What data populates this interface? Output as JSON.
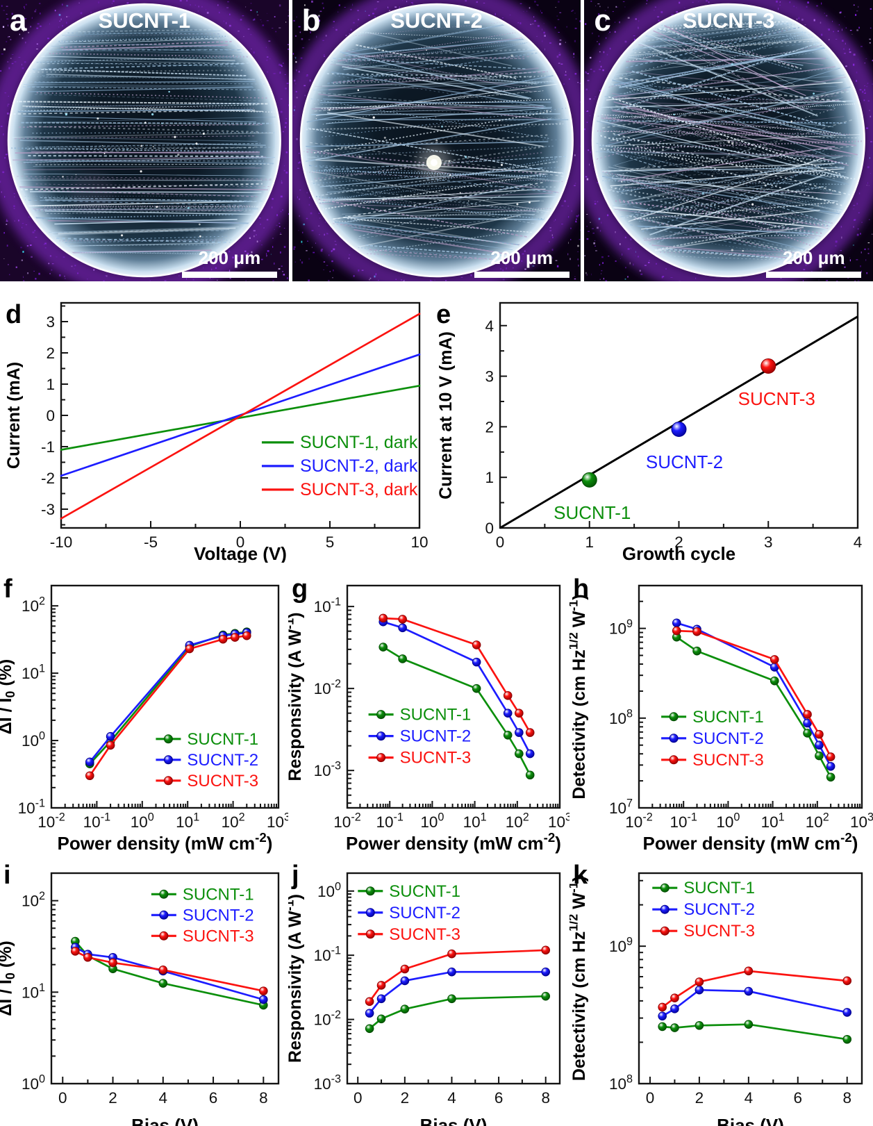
{
  "micrographs": [
    {
      "letter": "a",
      "title": "SUCNT-1",
      "scale_label": "200 μm"
    },
    {
      "letter": "b",
      "title": "SUCNT-2",
      "scale_label": "200 μm"
    },
    {
      "letter": "c",
      "title": "SUCNT-3",
      "scale_label": "200 μm"
    }
  ],
  "colors": {
    "sucnt1": "#0c8f0c",
    "sucnt2": "#1d1dff",
    "sucnt3": "#fb1310",
    "fit_line": "#000000"
  },
  "chart_data": [
    {
      "panel": "d",
      "type": "line",
      "xlabel": "Voltage (V)",
      "ylabel": "Current (mA)",
      "x": {
        "scale": "linear",
        "min": -10,
        "max": 10,
        "ticks": [
          -10,
          -5,
          0,
          5,
          10
        ],
        "minor_step": 2.5
      },
      "y": {
        "scale": "linear",
        "min": -3.6,
        "max": 3.6,
        "ticks": [
          -3,
          -2,
          -1,
          0,
          1,
          2,
          3
        ],
        "minor_step": 0.5
      },
      "series": [
        {
          "name": "SUCNT-1, dark",
          "color": "#0c8f0c",
          "dark": "#024d02",
          "x": [
            -10,
            10
          ],
          "y": [
            -1.1,
            0.95
          ],
          "markers": false
        },
        {
          "name": "SUCNT-2, dark",
          "color": "#1d1dff",
          "dark": "#000090",
          "x": [
            -10,
            10
          ],
          "y": [
            -1.93,
            1.95
          ],
          "markers": false
        },
        {
          "name": "SUCNT-3, dark",
          "color": "#fb1310",
          "dark": "#8e0000",
          "x": [
            -10,
            10
          ],
          "y": [
            -3.3,
            3.25
          ],
          "markers": false
        }
      ],
      "legend": {
        "pos": [
          0.56,
          0.62
        ],
        "dy": 34,
        "sample": 46,
        "fs": 25
      }
    },
    {
      "panel": "e",
      "type": "scatter",
      "xlabel": "Growth cycle",
      "ylabel": "Current at 10 V (mA)",
      "x": {
        "scale": "linear",
        "min": 0,
        "max": 4,
        "ticks": [
          0,
          1,
          2,
          3,
          4
        ],
        "minor_step": 0.5
      },
      "y": {
        "scale": "linear",
        "min": 0,
        "max": 4.45,
        "ticks": [
          0,
          1,
          2,
          3,
          4
        ],
        "minor_step": 0.5
      },
      "fit_line": {
        "x": [
          0,
          4
        ],
        "y": [
          0,
          4.18
        ],
        "color": "#000000"
      },
      "series": [
        {
          "name": "SUCNT-1",
          "color": "#0c8f0c",
          "dark": "#024d02",
          "x": [
            1
          ],
          "y": [
            0.95
          ],
          "line": false,
          "markers": true,
          "marker_size": 10.5,
          "point_label": {
            "dx": 4,
            "dy": 56
          }
        },
        {
          "name": "SUCNT-2",
          "color": "#1d1dff",
          "dark": "#000090",
          "x": [
            2
          ],
          "y": [
            1.95
          ],
          "line": false,
          "markers": true,
          "marker_size": 10.5,
          "point_label": {
            "dx": 8,
            "dy": 56
          }
        },
        {
          "name": "SUCNT-3",
          "color": "#fb1310",
          "dark": "#8e0000",
          "x": [
            3
          ],
          "y": [
            3.2
          ],
          "line": false,
          "markers": true,
          "marker_size": 10.5,
          "point_label": {
            "dx": 12,
            "dy": 56
          }
        }
      ]
    },
    {
      "panel": "f",
      "type": "line",
      "xlabel": "Power density (mW cm^{-2})",
      "ylabel": "ΔI / I_{0} (%)",
      "x": {
        "scale": "log",
        "min": 0.01,
        "max": 1000
      },
      "y": {
        "scale": "log",
        "min": 0.1,
        "max": 200
      },
      "series": [
        {
          "name": "SUCNT-1",
          "color": "#0c8f0c",
          "dark": "#024d02",
          "x": [
            0.07,
            0.2,
            11,
            60,
            110,
            200
          ],
          "y": [
            0.45,
            0.97,
            25,
            37,
            39,
            41
          ],
          "markers": true
        },
        {
          "name": "SUCNT-2",
          "color": "#1d1dff",
          "dark": "#000090",
          "x": [
            0.07,
            0.2,
            11,
            60,
            110,
            200
          ],
          "y": [
            0.48,
            1.15,
            26,
            36,
            38,
            40
          ],
          "markers": true
        },
        {
          "name": "SUCNT-3",
          "color": "#fb1310",
          "dark": "#8e0000",
          "x": [
            0.07,
            0.2,
            11,
            60,
            110,
            200
          ],
          "y": [
            0.3,
            0.85,
            23,
            32,
            34,
            36
          ],
          "markers": true
        }
      ],
      "legend": {
        "pos": [
          0.46,
          0.69
        ],
        "dy": 30,
        "sample": 36,
        "fs": 24
      }
    },
    {
      "panel": "g",
      "type": "line",
      "xlabel": "Power density (mW cm^{-2})",
      "ylabel": "Responsivity (A W^{-1})",
      "x": {
        "scale": "log",
        "min": 0.01,
        "max": 1000
      },
      "y": {
        "scale": "log",
        "min": 0.00035,
        "max": 0.18
      },
      "series": [
        {
          "name": "SUCNT-1",
          "color": "#0c8f0c",
          "dark": "#024d02",
          "x": [
            0.07,
            0.2,
            11,
            60,
            110,
            200
          ],
          "y": [
            0.032,
            0.023,
            0.01,
            0.0027,
            0.0016,
            0.00088
          ],
          "markers": true
        },
        {
          "name": "SUCNT-2",
          "color": "#1d1dff",
          "dark": "#000090",
          "x": [
            0.07,
            0.2,
            11,
            60,
            110,
            200
          ],
          "y": [
            0.065,
            0.055,
            0.021,
            0.005,
            0.0029,
            0.0016
          ],
          "markers": true
        },
        {
          "name": "SUCNT-3",
          "color": "#fb1310",
          "dark": "#8e0000",
          "x": [
            0.07,
            0.2,
            11,
            60,
            110,
            200
          ],
          "y": [
            0.072,
            0.07,
            0.034,
            0.0082,
            0.005,
            0.0029
          ],
          "markers": true
        }
      ],
      "legend": {
        "pos": [
          0.1,
          0.58
        ],
        "dy": 31,
        "sample": 36,
        "fs": 24
      }
    },
    {
      "panel": "h",
      "type": "line",
      "xlabel": "Power density (mW cm^{-2})",
      "ylabel": "Detectivity (cm Hz^{1/2} W^{-1})",
      "x": {
        "scale": "log",
        "min": 0.01,
        "max": 1000
      },
      "y": {
        "scale": "log",
        "min": 10000000,
        "max": 3000000000
      },
      "series": [
        {
          "name": "SUCNT-1",
          "color": "#0c8f0c",
          "dark": "#024d02",
          "x": [
            0.07,
            0.2,
            11,
            60,
            110,
            200
          ],
          "y": [
            800000000,
            560000000,
            260000000,
            68000000,
            38000000,
            22000000
          ],
          "markers": true
        },
        {
          "name": "SUCNT-2",
          "color": "#1d1dff",
          "dark": "#000090",
          "x": [
            0.07,
            0.2,
            11,
            60,
            110,
            200
          ],
          "y": [
            1150000000,
            980000000,
            370000000,
            88000000,
            50000000,
            29000000
          ],
          "markers": true
        },
        {
          "name": "SUCNT-3",
          "color": "#fb1310",
          "dark": "#8e0000",
          "x": [
            0.07,
            0.2,
            11,
            60,
            110,
            200
          ],
          "y": [
            940000000,
            920000000,
            450000000,
            110000000,
            66000000,
            37000000
          ],
          "markers": true
        }
      ],
      "legend": {
        "pos": [
          0.1,
          0.59
        ],
        "dy": 31,
        "sample": 36,
        "fs": 24
      }
    },
    {
      "panel": "i",
      "type": "line",
      "xlabel": "Bias (V)",
      "ylabel": "ΔI / I_{0} (%)",
      "x": {
        "scale": "linear",
        "min": -0.45,
        "max": 8.6,
        "ticks": [
          0,
          2,
          4,
          6,
          8
        ],
        "minor_step": 1
      },
      "y": {
        "scale": "log",
        "min": 1,
        "max": 200
      },
      "series": [
        {
          "name": "SUCNT-1",
          "color": "#0c8f0c",
          "dark": "#024d02",
          "x": [
            0.5,
            1,
            2,
            4,
            8
          ],
          "y": [
            36,
            25,
            18,
            12.5,
            7.2
          ],
          "markers": true
        },
        {
          "name": "SUCNT-2",
          "color": "#1d1dff",
          "dark": "#000090",
          "x": [
            0.5,
            1,
            2,
            4,
            8
          ],
          "y": [
            31,
            26,
            24,
            17,
            8.3
          ],
          "markers": true
        },
        {
          "name": "SUCNT-3",
          "color": "#fb1310",
          "dark": "#8e0000",
          "x": [
            0.5,
            1,
            2,
            4,
            8
          ],
          "y": [
            28,
            24,
            21,
            17.5,
            10.3
          ],
          "markers": true
        }
      ],
      "legend": {
        "pos": [
          0.44,
          0.1
        ],
        "dy": 30,
        "sample": 36,
        "fs": 24
      }
    },
    {
      "panel": "j",
      "type": "line",
      "xlabel": "Bias (V)",
      "ylabel": "Responsivity (A W^{-1})",
      "x": {
        "scale": "linear",
        "min": -0.45,
        "max": 8.6,
        "ticks": [
          0,
          2,
          4,
          6,
          8
        ],
        "minor_step": 1
      },
      "y": {
        "scale": "log",
        "min": 0.001,
        "max": 1.9
      },
      "series": [
        {
          "name": "SUCNT-1",
          "color": "#0c8f0c",
          "dark": "#024d02",
          "x": [
            0.5,
            1,
            2,
            4,
            8
          ],
          "y": [
            0.0072,
            0.0102,
            0.0145,
            0.021,
            0.023
          ],
          "markers": true
        },
        {
          "name": "SUCNT-2",
          "color": "#1d1dff",
          "dark": "#000090",
          "x": [
            0.5,
            1,
            2,
            4,
            8
          ],
          "y": [
            0.0125,
            0.021,
            0.04,
            0.055,
            0.055
          ],
          "markers": true
        },
        {
          "name": "SUCNT-3",
          "color": "#fb1310",
          "dark": "#8e0000",
          "x": [
            0.5,
            1,
            2,
            4,
            8
          ],
          "y": [
            0.019,
            0.034,
            0.061,
            0.105,
            0.12
          ],
          "markers": true
        }
      ],
      "legend": {
        "pos": [
          0.05,
          0.085
        ],
        "dy": 31,
        "sample": 36,
        "fs": 24
      }
    },
    {
      "panel": "k",
      "type": "line",
      "xlabel": "Bias (V)",
      "ylabel": "Detectivity (cm Hz^{1/2} W^{-1})",
      "x": {
        "scale": "linear",
        "min": -0.45,
        "max": 8.6,
        "ticks": [
          0,
          2,
          4,
          6,
          8
        ],
        "minor_step": 1
      },
      "y": {
        "scale": "log",
        "min": 100000000,
        "max": 3400000000
      },
      "series": [
        {
          "name": "SUCNT-1",
          "color": "#0c8f0c",
          "dark": "#024d02",
          "x": [
            0.5,
            1,
            2,
            4,
            8
          ],
          "y": [
            260000000,
            255000000,
            265000000,
            270000000,
            210000000
          ],
          "markers": true
        },
        {
          "name": "SUCNT-2",
          "color": "#1d1dff",
          "dark": "#000090",
          "x": [
            0.5,
            1,
            2,
            4,
            8
          ],
          "y": [
            310000000,
            350000000,
            480000000,
            470000000,
            330000000
          ],
          "markers": true
        },
        {
          "name": "SUCNT-3",
          "color": "#fb1310",
          "dark": "#8e0000",
          "x": [
            0.5,
            1,
            2,
            4,
            8
          ],
          "y": [
            360000000,
            420000000,
            550000000,
            660000000,
            560000000
          ],
          "markers": true
        }
      ],
      "legend": {
        "pos": [
          0.06,
          0.07
        ],
        "dy": 31,
        "sample": 36,
        "fs": 24
      }
    }
  ]
}
